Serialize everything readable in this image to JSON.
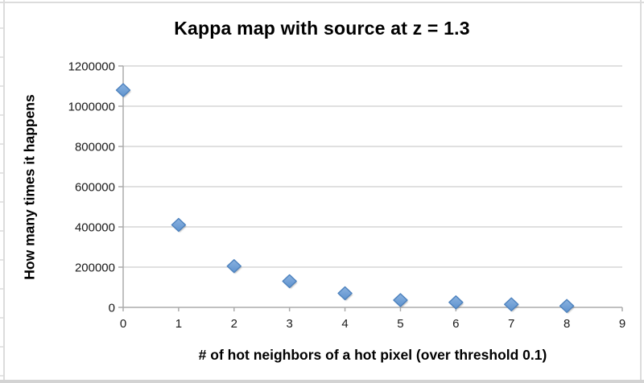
{
  "chart_data": {
    "type": "scatter",
    "title": "Kappa map with source at z = 1.3",
    "xlabel": "# of hot neighbors of a hot pixel (over threshold 0.1)",
    "ylabel": "How many times it happens",
    "x": [
      0,
      1,
      2,
      3,
      4,
      5,
      6,
      7,
      8
    ],
    "y": [
      1080000,
      410000,
      205000,
      130000,
      70000,
      36000,
      25000,
      15000,
      7000
    ],
    "xlim": [
      0,
      9
    ],
    "ylim": [
      0,
      1200000
    ],
    "xticks": [
      0,
      1,
      2,
      3,
      4,
      5,
      6,
      7,
      8,
      9
    ],
    "yticks": [
      0,
      200000,
      400000,
      600000,
      800000,
      1000000,
      1200000
    ],
    "grid": "horizontal",
    "legend": "none",
    "marker": "diamond",
    "colors": {
      "marker_fill_top": "#8AB2E0",
      "marker_fill_bottom": "#5F93CE",
      "marker_stroke": "#4D82BE",
      "marker_shadow": "rgba(110,110,110,0.45)",
      "gridline": "#d6d6d6",
      "axis": "#ababab"
    }
  }
}
